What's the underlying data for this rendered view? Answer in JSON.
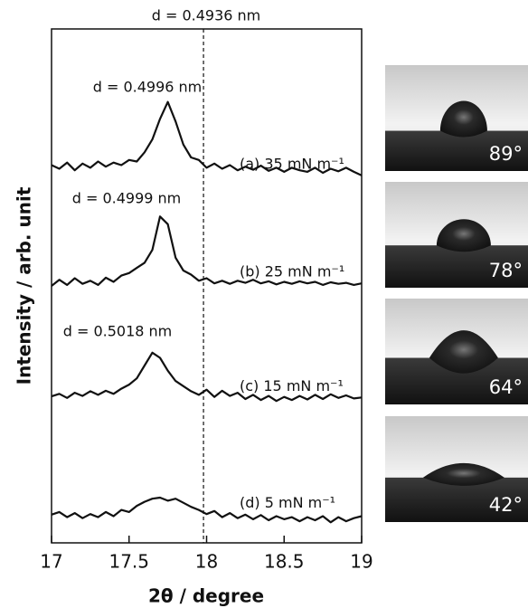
{
  "chart_data": {
    "type": "line",
    "x_label": "2θ / degree",
    "y_label": "Intensity / arb. unit",
    "xlim": [
      17,
      19
    ],
    "xticks": [
      17,
      17.5,
      18,
      18.5,
      19
    ],
    "ylim": [
      0,
      100
    ],
    "reference_line": {
      "x": 17.98,
      "label": "d = 0.4936 nm"
    },
    "x": [
      17.0,
      17.05,
      17.1,
      17.15,
      17.2,
      17.25,
      17.3,
      17.35,
      17.4,
      17.45,
      17.5,
      17.55,
      17.6,
      17.65,
      17.7,
      17.75,
      17.8,
      17.85,
      17.9,
      17.95,
      18.0,
      18.05,
      18.1,
      18.15,
      18.2,
      18.25,
      18.3,
      18.35,
      18.4,
      18.45,
      18.5,
      18.55,
      18.6,
      18.65,
      18.7,
      18.75,
      18.8,
      18.85,
      18.9,
      18.95,
      19.0
    ],
    "series": [
      {
        "name": "(a) 35 mN m⁻¹",
        "color": "#111111",
        "peak_label": "d = 0.4996 nm",
        "values": [
          73.5,
          72.8,
          74.0,
          72.5,
          73.8,
          73.0,
          74.2,
          73.2,
          74.0,
          73.5,
          74.5,
          74.2,
          76.0,
          78.5,
          82.5,
          85.8,
          82.0,
          77.5,
          75.0,
          74.5,
          73.0,
          73.8,
          72.8,
          73.5,
          72.5,
          73.2,
          72.6,
          73.4,
          72.4,
          73.0,
          72.2,
          73.0,
          72.5,
          72.2,
          73.0,
          72.0,
          72.8,
          72.3,
          73.0,
          72.2,
          71.5
        ]
      },
      {
        "name": "(b) 25 mN m⁻¹",
        "color": "#111111",
        "peak_label": "d = 0.4999 nm",
        "values": [
          50.0,
          51.2,
          50.2,
          51.5,
          50.4,
          51.0,
          50.2,
          51.6,
          50.8,
          52.0,
          52.5,
          53.5,
          54.5,
          57.0,
          63.5,
          62.0,
          55.5,
          53.0,
          52.2,
          51.0,
          51.5,
          50.5,
          51.0,
          50.4,
          51.0,
          50.6,
          51.2,
          50.5,
          50.9,
          50.3,
          50.8,
          50.4,
          50.9,
          50.5,
          50.8,
          50.2,
          50.7,
          50.4,
          50.6,
          50.2,
          50.5
        ]
      },
      {
        "name": "(c) 15 mN m⁻¹",
        "color": "#111111",
        "peak_label": "d = 0.5018 nm",
        "values": [
          28.5,
          29.0,
          28.2,
          29.2,
          28.6,
          29.5,
          28.8,
          29.6,
          29.0,
          30.0,
          30.8,
          32.0,
          34.5,
          37.0,
          36.0,
          33.5,
          31.5,
          30.5,
          29.5,
          28.8,
          29.8,
          28.4,
          29.6,
          28.6,
          29.2,
          28.0,
          28.8,
          27.8,
          28.6,
          27.6,
          28.4,
          27.8,
          28.6,
          27.9,
          28.8,
          28.0,
          28.9,
          28.2,
          28.7,
          28.1,
          28.3
        ]
      },
      {
        "name": "(d) 5 mN m⁻¹",
        "color": "#111111",
        "values": [
          5.5,
          6.0,
          5.0,
          5.8,
          4.8,
          5.6,
          5.0,
          6.0,
          5.2,
          6.4,
          6.0,
          7.2,
          8.0,
          8.6,
          8.8,
          8.2,
          8.6,
          7.8,
          7.0,
          6.4,
          5.6,
          6.2,
          5.0,
          5.8,
          4.8,
          5.5,
          4.6,
          5.4,
          4.4,
          5.2,
          4.6,
          5.0,
          4.2,
          5.0,
          4.4,
          5.2,
          4.0,
          5.0,
          4.2,
          4.8,
          5.2
        ]
      }
    ],
    "contact_angle_images": [
      {
        "label": "89°"
      },
      {
        "label": "78°"
      },
      {
        "label": "64°"
      },
      {
        "label": "42°"
      }
    ]
  }
}
